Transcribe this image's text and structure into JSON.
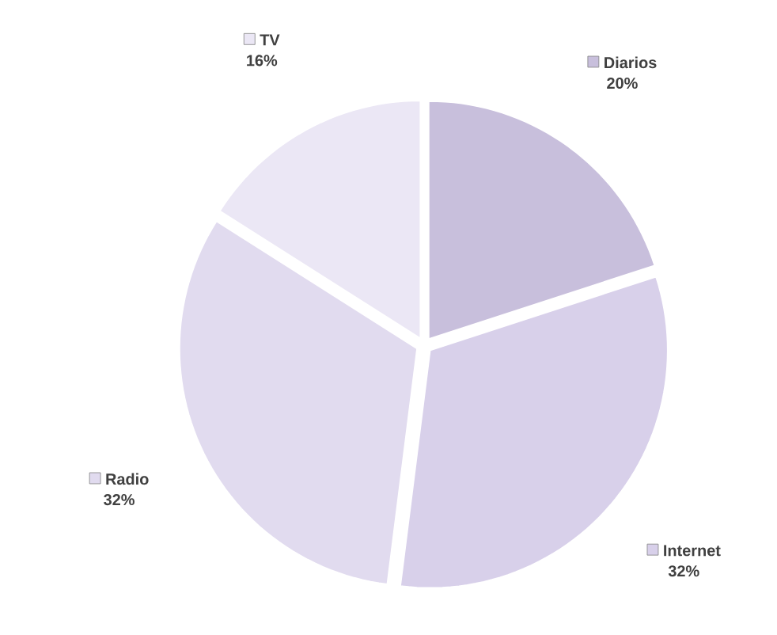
{
  "chart_data": {
    "type": "pie",
    "categories": [
      "Diarios",
      "Internet",
      "Radio",
      "TV"
    ],
    "values": [
      20,
      32,
      32,
      16
    ],
    "colors": [
      "#c8bfdc",
      "#d8d0ea",
      "#e1dbef",
      "#ebe7f5"
    ],
    "value_labels": [
      "20%",
      "32%",
      "32%",
      "16%"
    ],
    "legend": "top right"
  }
}
